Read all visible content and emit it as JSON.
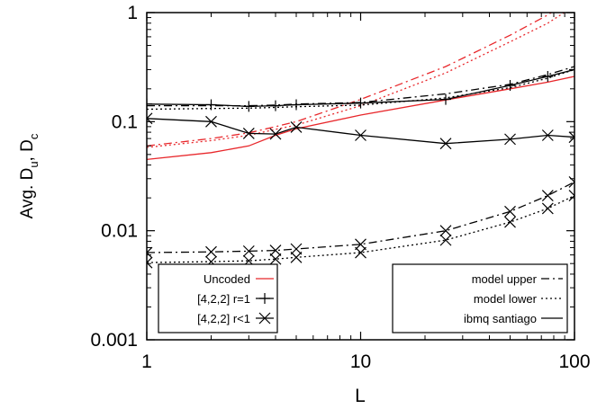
{
  "chart_data": {
    "type": "line",
    "xscale": "log",
    "yscale": "log",
    "xlim": [
      1,
      100
    ],
    "ylim": [
      0.001,
      1
    ],
    "xlabel": "L",
    "ylabel": "Avg. D",
    "ylabel_sub1": "u",
    "ylabel_sep": ", D",
    "ylabel_sub2": "c",
    "xticks": [
      1,
      10,
      100
    ],
    "xtick_labels": [
      "1",
      "10",
      "100"
    ],
    "yticks": [
      0.001,
      0.01,
      0.1,
      1
    ],
    "ytick_labels": [
      "0.001",
      "0.01",
      "0.1",
      "1"
    ],
    "grid": false,
    "legends": [
      {
        "position": "bottom-left",
        "entries": [
          {
            "label": "Uncoded",
            "color": "#e8272b",
            "dash": "solid",
            "marker": "none"
          },
          {
            "label": "[4,2,2] r=1",
            "color": "#000000",
            "dash": "solid",
            "marker": "plus"
          },
          {
            "label": "[4,2,2] r<1",
            "color": "#000000",
            "dash": "solid",
            "marker": "cross"
          }
        ]
      },
      {
        "position": "bottom-right",
        "entries": [
          {
            "label": "model upper",
            "color": "#000000",
            "dash": "dashdot",
            "marker": "none"
          },
          {
            "label": "model lower",
            "color": "#000000",
            "dash": "dotted",
            "marker": "none"
          },
          {
            "label": "ibmq santiago",
            "color": "#000000",
            "dash": "solid",
            "marker": "none"
          }
        ]
      }
    ],
    "series": [
      {
        "color": "#e8272b",
        "dash": "dashdot",
        "marker": "none",
        "x": [
          1,
          2,
          3,
          4,
          5,
          10,
          25,
          50,
          75,
          100
        ],
        "y": [
          0.06,
          0.07,
          0.079,
          0.09,
          0.1,
          0.16,
          0.32,
          0.62,
          0.95,
          1.4
        ]
      },
      {
        "color": "#e8272b",
        "dash": "dotted",
        "marker": "none",
        "x": [
          1,
          2,
          3,
          4,
          5,
          10,
          25,
          50,
          75,
          100
        ],
        "y": [
          0.058,
          0.067,
          0.075,
          0.085,
          0.093,
          0.14,
          0.28,
          0.54,
          0.8,
          1.15
        ]
      },
      {
        "color": "#e8272b",
        "dash": "solid",
        "marker": "none",
        "x": [
          1,
          2,
          3,
          4,
          5,
          10,
          25,
          50,
          75,
          100
        ],
        "y": [
          0.045,
          0.052,
          0.06,
          0.075,
          0.086,
          0.115,
          0.158,
          0.2,
          0.23,
          0.26
        ]
      },
      {
        "color": "#000000",
        "dash": "dashdot",
        "marker": "none",
        "x": [
          1,
          2,
          3,
          4,
          5,
          10,
          25,
          50,
          75,
          100
        ],
        "y": [
          0.14,
          0.14,
          0.14,
          0.142,
          0.145,
          0.15,
          0.18,
          0.22,
          0.27,
          0.32
        ]
      },
      {
        "color": "#000000",
        "dash": "dotted",
        "marker": "none",
        "x": [
          1,
          2,
          3,
          4,
          5,
          10,
          25,
          50,
          75,
          100
        ],
        "y": [
          0.13,
          0.132,
          0.133,
          0.135,
          0.137,
          0.142,
          0.165,
          0.205,
          0.25,
          0.3
        ]
      },
      {
        "color": "#000000",
        "dash": "solid",
        "marker": "plus",
        "x": [
          1,
          2,
          3,
          4,
          5,
          10,
          25,
          50,
          75,
          100
        ],
        "y": [
          0.145,
          0.143,
          0.138,
          0.14,
          0.143,
          0.148,
          0.16,
          0.215,
          0.26,
          0.3
        ]
      },
      {
        "color": "#000000",
        "dash": "solid",
        "marker": "cross",
        "x": [
          1,
          2,
          3,
          4,
          5,
          10,
          25,
          50,
          75,
          100
        ],
        "y": [
          0.107,
          0.1,
          0.078,
          0.077,
          0.089,
          0.075,
          0.063,
          0.069,
          0.075,
          0.072
        ]
      },
      {
        "color": "#000000",
        "dash": "dashdot",
        "marker": "cross",
        "x": [
          1,
          2,
          3,
          4,
          5,
          10,
          25,
          50,
          75,
          100
        ],
        "y": [
          0.0063,
          0.0064,
          0.0065,
          0.0066,
          0.0068,
          0.0075,
          0.01,
          0.015,
          0.021,
          0.028
        ]
      },
      {
        "color": "#000000",
        "dash": "dotted",
        "marker": "cross",
        "x": [
          1,
          2,
          3,
          4,
          5,
          10,
          25,
          50,
          75,
          100
        ],
        "y": [
          0.0051,
          0.0052,
          0.0053,
          0.0055,
          0.0057,
          0.0063,
          0.0082,
          0.012,
          0.016,
          0.021
        ]
      }
    ]
  }
}
